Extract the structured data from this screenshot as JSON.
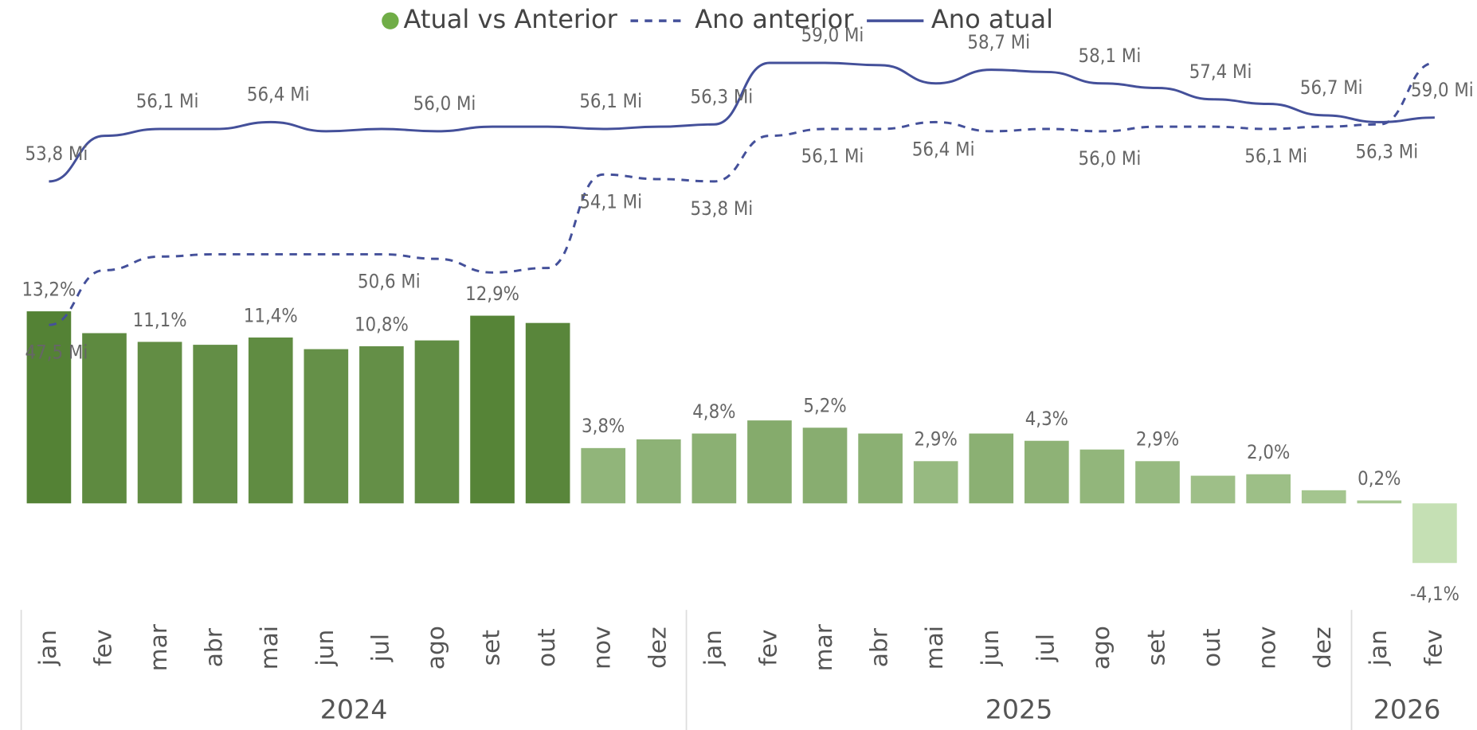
{
  "chart_data": {
    "type": "combo",
    "categories": [
      "jan",
      "fev",
      "mar",
      "abr",
      "mai",
      "jun",
      "jul",
      "ago",
      "set",
      "out",
      "nov",
      "dez",
      "jan",
      "fev",
      "mar",
      "abr",
      "mai",
      "jun",
      "jul",
      "ago",
      "set",
      "out",
      "nov",
      "dez",
      "jan",
      "fev"
    ],
    "groups": [
      {
        "label": "2024",
        "count": 12
      },
      {
        "label": "2025",
        "count": 12
      },
      {
        "label": "2026",
        "count": 2
      }
    ],
    "bar_series": {
      "name": "Atual vs Anterior",
      "color": "#70ad47",
      "color_scale": [
        "#c5e0b4",
        "#548235"
      ],
      "values": [
        13.2,
        11.7,
        11.1,
        10.9,
        11.4,
        10.6,
        10.8,
        11.2,
        12.9,
        12.4,
        3.8,
        4.4,
        4.8,
        5.7,
        5.2,
        4.8,
        2.9,
        4.8,
        4.3,
        3.7,
        2.9,
        1.9,
        2.0,
        0.9,
        0.2,
        -4.1
      ],
      "value_labels": [
        "13,2%",
        null,
        "11,1%",
        null,
        "11,4%",
        null,
        "10,8%",
        null,
        "12,9%",
        null,
        "3,8%",
        null,
        "4,8%",
        null,
        "5,2%",
        null,
        "2,9%",
        null,
        "4,3%",
        null,
        "2,9%",
        null,
        "2,0%",
        null,
        "0,2%",
        "-4,1%"
      ]
    },
    "series": [
      {
        "name": "Ano anterior",
        "color": "#44509a",
        "dashed": true,
        "axis": "y2",
        "values": [
          47.5,
          49.9,
          50.5,
          50.6,
          50.6,
          50.6,
          50.6,
          50.4,
          49.8,
          50.0,
          54.1,
          53.9,
          53.8,
          55.8,
          56.1,
          56.1,
          56.4,
          56.0,
          56.1,
          56.0,
          56.2,
          56.2,
          56.1,
          56.2,
          56.3,
          59.0
        ],
        "value_labels": [
          "47,5 Mi",
          null,
          null,
          null,
          null,
          null,
          "50,6 Mi",
          null,
          null,
          null,
          "54,1 Mi",
          null,
          "53,8 Mi",
          null,
          "56,1 Mi",
          null,
          "56,4 Mi",
          null,
          null,
          "56,0 Mi",
          null,
          null,
          "56,1 Mi",
          null,
          "56,3 Mi",
          "59,0 Mi"
        ]
      },
      {
        "name": "Ano atual",
        "color": "#44509a",
        "dashed": false,
        "axis": "y2",
        "values": [
          53.8,
          55.8,
          56.1,
          56.1,
          56.4,
          56.0,
          56.1,
          56.0,
          56.2,
          56.2,
          56.1,
          56.2,
          56.3,
          59.0,
          59.0,
          58.9,
          58.1,
          58.7,
          58.6,
          58.1,
          57.9,
          57.4,
          57.2,
          56.7,
          56.4,
          56.6
        ],
        "value_labels": [
          "53,8 Mi",
          null,
          "56,1 Mi",
          null,
          "56,4 Mi",
          null,
          null,
          "56,0 Mi",
          null,
          null,
          "56,1 Mi",
          null,
          "56,3 Mi",
          null,
          "59,0 Mi",
          null,
          null,
          "58,7 Mi",
          null,
          "58,1 Mi",
          null,
          "57,4 Mi",
          null,
          "56,7 Mi",
          null,
          null
        ]
      }
    ],
    "ylim": [
      -7,
      32
    ],
    "y2lim": [
      35.2,
      60.1
    ],
    "legend": "top"
  }
}
